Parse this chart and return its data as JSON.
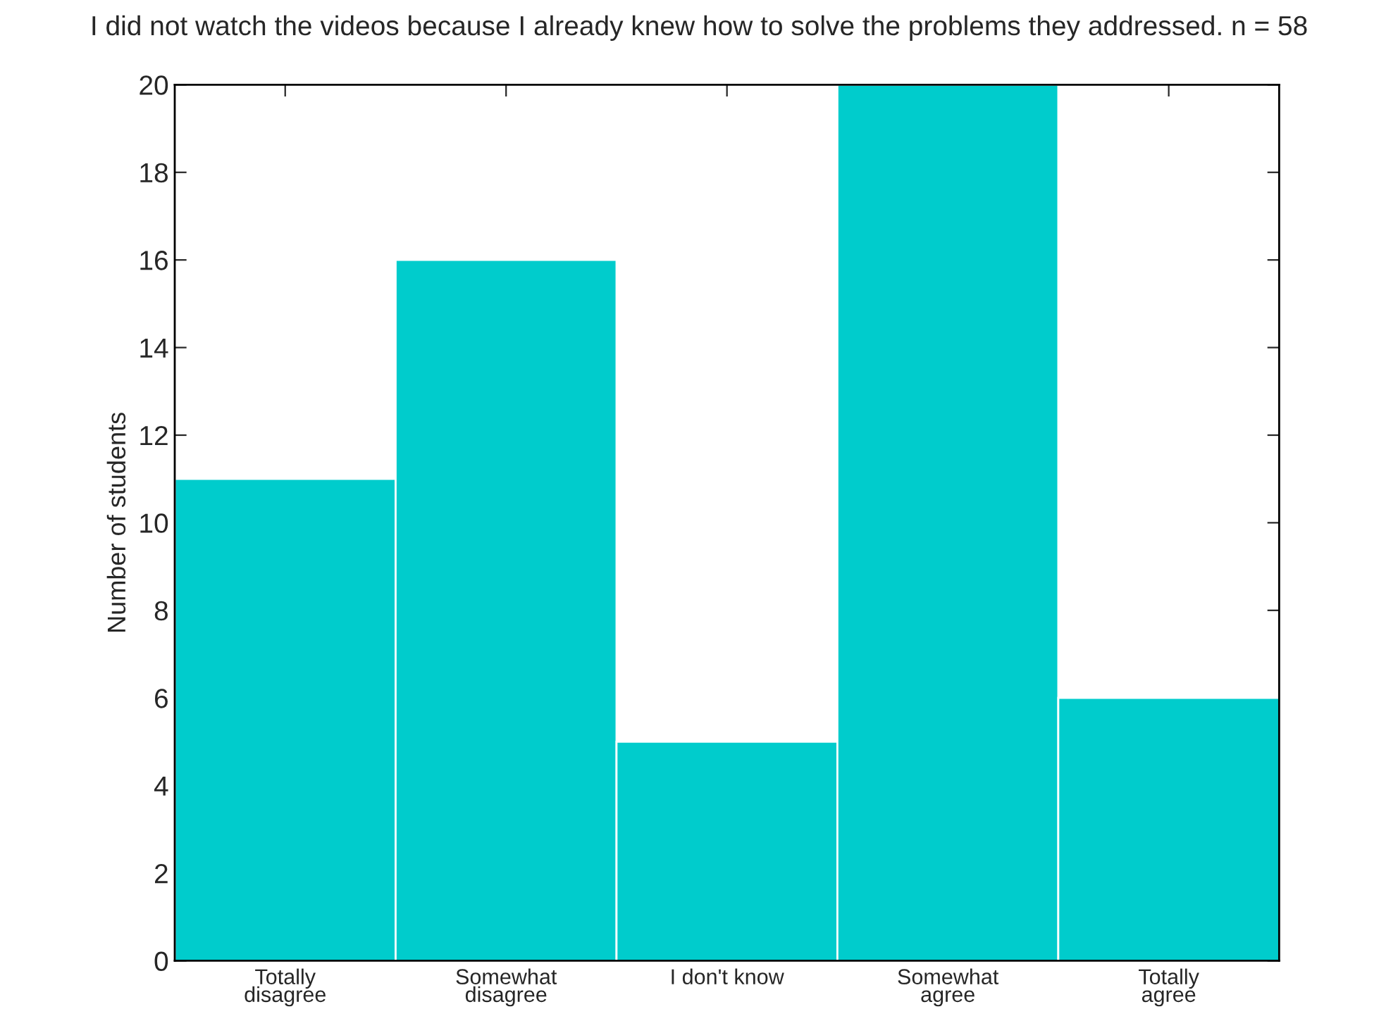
{
  "chart_data": {
    "type": "bar",
    "title": "I did not watch the videos because I already knew how to solve the problems they addressed. n = 58",
    "ylabel": "Number of students",
    "categories": [
      "Totally\ndisagree",
      "Somewhat\ndisagree",
      "I don't know",
      "Somewhat\nagree",
      "Totally\nagree"
    ],
    "values": [
      11,
      16,
      5,
      20,
      6
    ],
    "color": "#00cccc",
    "ylim": [
      0,
      20
    ],
    "yticks": [
      0,
      2,
      4,
      6,
      8,
      10,
      12,
      14,
      16,
      18,
      20
    ],
    "grid": false,
    "legend": false
  }
}
